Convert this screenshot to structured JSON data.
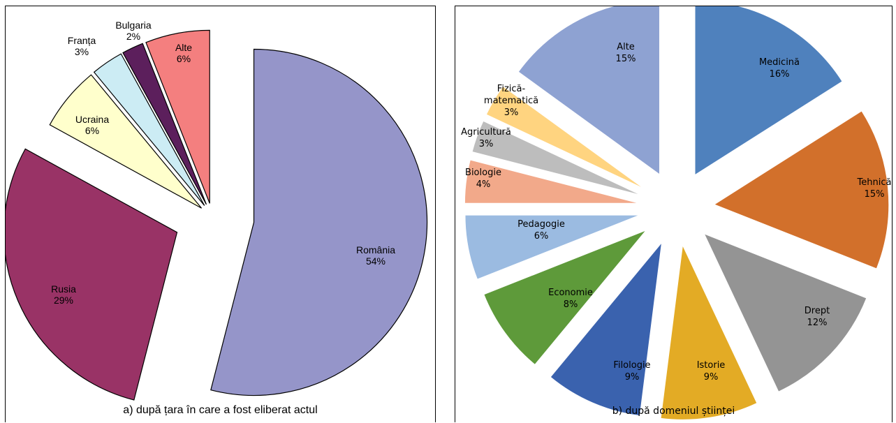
{
  "chart_data": [
    {
      "type": "pie",
      "title": "a) după țara în care a fost eliberat actul",
      "colors": [
        "#9595C9",
        "#993366",
        "#FFFFCC",
        "#CCECF4",
        "#5C1F5C",
        "#F47F7F"
      ],
      "slices": [
        {
          "label": "România",
          "value": 54,
          "text": "54%"
        },
        {
          "label": "Rusia",
          "value": 29,
          "text": "29%"
        },
        {
          "label": "Ucraina",
          "value": 6,
          "text": "6%"
        },
        {
          "label": "Franța",
          "value": 3,
          "text": "3%"
        },
        {
          "label": "Bulgaria",
          "value": 2,
          "text": "2%"
        },
        {
          "label": "Alte",
          "value": 6,
          "text": "6%"
        }
      ]
    },
    {
      "type": "pie",
      "title": "b) după domeniul științei",
      "colors": [
        "#4F81BD",
        "#D2702B",
        "#949494",
        "#E3AB25",
        "#3A62AE",
        "#5E9A3A",
        "#9BBBE1",
        "#F2A98A",
        "#BDBDBD",
        "#FFD480",
        "#8EA2D2"
      ],
      "slices": [
        {
          "label": "Medicină",
          "value": 16,
          "text": "16%"
        },
        {
          "label": "Tehnică",
          "value": 15,
          "text": "15%"
        },
        {
          "label": "Drept",
          "value": 12,
          "text": "12%"
        },
        {
          "label": "Istorie",
          "value": 9,
          "text": "9%"
        },
        {
          "label": "Filologie",
          "value": 9,
          "text": "9%"
        },
        {
          "label": "Economie",
          "value": 8,
          "text": "8%"
        },
        {
          "label": "Pedagogie",
          "value": 6,
          "text": "6%"
        },
        {
          "label": "Biologie",
          "value": 4,
          "text": "4%"
        },
        {
          "label": "Agricultură",
          "value": 3,
          "text": "3%"
        },
        {
          "label": "Fizică-\nmatematică",
          "value": 3,
          "text": "3%"
        },
        {
          "label": "Alte",
          "value": 15,
          "text": "15%"
        }
      ]
    }
  ]
}
